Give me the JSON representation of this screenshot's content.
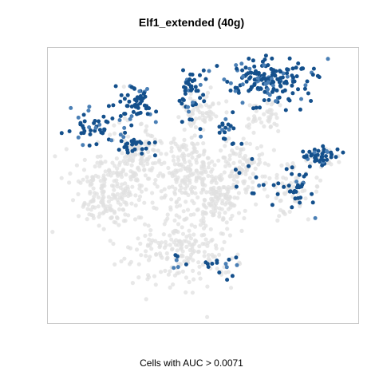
{
  "chart_data": {
    "type": "scatter",
    "title": "Elf1_extended (40g)",
    "caption": "Cells with AUC > 0.0071",
    "grid": false,
    "legend": "none",
    "colors": {
      "background_cells": "#e0e0e0",
      "high_auc": "#14508c",
      "high_auc_light": "#4a7fb5",
      "frame": "#c8c8c8"
    },
    "series": [
      {
        "role": "background",
        "clusters": [
          {
            "cx": 0.2,
            "cy": 0.52,
            "rx": 0.11,
            "ry": 0.13,
            "n": 210
          },
          {
            "cx": 0.3,
            "cy": 0.4,
            "rx": 0.08,
            "ry": 0.1,
            "n": 110
          },
          {
            "cx": 0.46,
            "cy": 0.45,
            "rx": 0.1,
            "ry": 0.14,
            "n": 190
          },
          {
            "cx": 0.56,
            "cy": 0.55,
            "rx": 0.09,
            "ry": 0.1,
            "n": 130
          },
          {
            "cx": 0.43,
            "cy": 0.74,
            "rx": 0.15,
            "ry": 0.12,
            "n": 200
          },
          {
            "cx": 0.63,
            "cy": 0.42,
            "rx": 0.07,
            "ry": 0.09,
            "n": 80
          },
          {
            "cx": 0.79,
            "cy": 0.52,
            "rx": 0.07,
            "ry": 0.09,
            "n": 60
          },
          {
            "cx": 0.88,
            "cy": 0.4,
            "rx": 0.05,
            "ry": 0.04,
            "n": 30
          },
          {
            "cx": 0.49,
            "cy": 0.22,
            "rx": 0.07,
            "ry": 0.07,
            "n": 60
          },
          {
            "cx": 0.7,
            "cy": 0.25,
            "rx": 0.06,
            "ry": 0.05,
            "n": 40
          }
        ]
      },
      {
        "role": "high_auc",
        "clusters": [
          {
            "cx": 0.71,
            "cy": 0.12,
            "rx": 0.13,
            "ry": 0.07,
            "n": 170
          },
          {
            "cx": 0.46,
            "cy": 0.15,
            "rx": 0.04,
            "ry": 0.09,
            "n": 45
          },
          {
            "cx": 0.28,
            "cy": 0.2,
            "rx": 0.05,
            "ry": 0.06,
            "n": 55
          },
          {
            "cx": 0.14,
            "cy": 0.29,
            "rx": 0.07,
            "ry": 0.05,
            "n": 40
          },
          {
            "cx": 0.26,
            "cy": 0.35,
            "rx": 0.06,
            "ry": 0.05,
            "n": 30
          },
          {
            "cx": 0.88,
            "cy": 0.39,
            "rx": 0.06,
            "ry": 0.03,
            "n": 40
          },
          {
            "cx": 0.8,
            "cy": 0.5,
            "rx": 0.06,
            "ry": 0.09,
            "n": 35
          },
          {
            "cx": 0.57,
            "cy": 0.31,
            "rx": 0.08,
            "ry": 0.04,
            "n": 20
          },
          {
            "cx": 0.57,
            "cy": 0.8,
            "rx": 0.06,
            "ry": 0.05,
            "n": 14
          },
          {
            "cx": 0.4,
            "cy": 0.76,
            "rx": 0.05,
            "ry": 0.04,
            "n": 6
          },
          {
            "cx": 0.65,
            "cy": 0.48,
            "rx": 0.05,
            "ry": 0.06,
            "n": 10
          }
        ]
      }
    ]
  }
}
